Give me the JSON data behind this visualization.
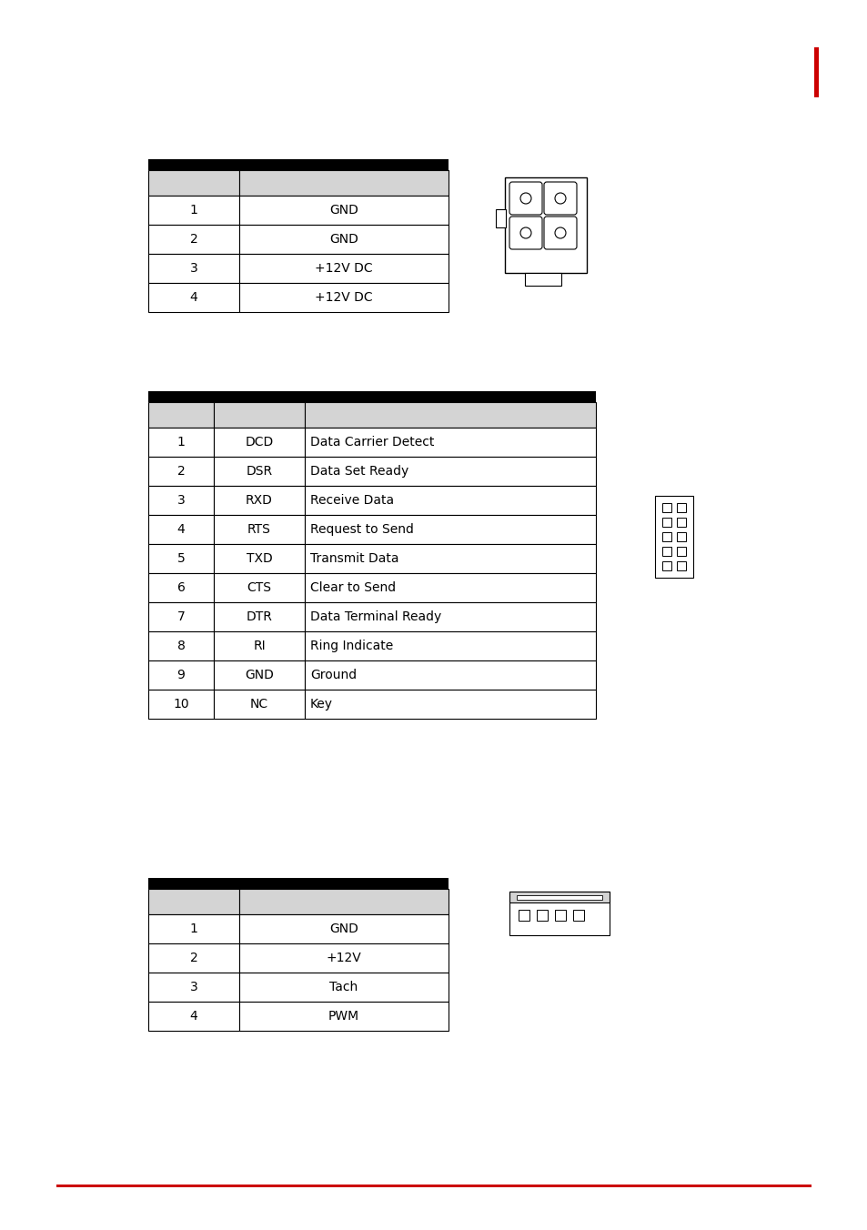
{
  "bg_color": "#ffffff",
  "page_marker_color": "#cc0000",
  "footer_line_color": "#cc0000",
  "header_black": "#000000",
  "header_gray": "#d4d4d4",
  "row_white": "#ffffff",
  "text_color": "#000000",
  "font_size": 10,
  "table1": {
    "rows": [
      [
        "1",
        "GND"
      ],
      [
        "2",
        "GND"
      ],
      [
        "3",
        "+12V DC"
      ],
      [
        "4",
        "+12V DC"
      ]
    ]
  },
  "table2": {
    "rows": [
      [
        "1",
        "DCD",
        "Data Carrier Detect"
      ],
      [
        "2",
        "DSR",
        "Data Set Ready"
      ],
      [
        "3",
        "RXD",
        "Receive Data"
      ],
      [
        "4",
        "RTS",
        "Request to Send"
      ],
      [
        "5",
        "TXD",
        "Transmit Data"
      ],
      [
        "6",
        "CTS",
        "Clear to Send"
      ],
      [
        "7",
        "DTR",
        "Data Terminal Ready"
      ],
      [
        "8",
        "RI",
        "Ring Indicate"
      ],
      [
        "9",
        "GND",
        "Ground"
      ],
      [
        "10",
        "NC",
        "Key"
      ]
    ]
  },
  "table3": {
    "rows": [
      [
        "1",
        "GND"
      ],
      [
        "2",
        "+12V"
      ],
      [
        "3",
        "Tach"
      ],
      [
        "4",
        "PWM"
      ]
    ]
  }
}
